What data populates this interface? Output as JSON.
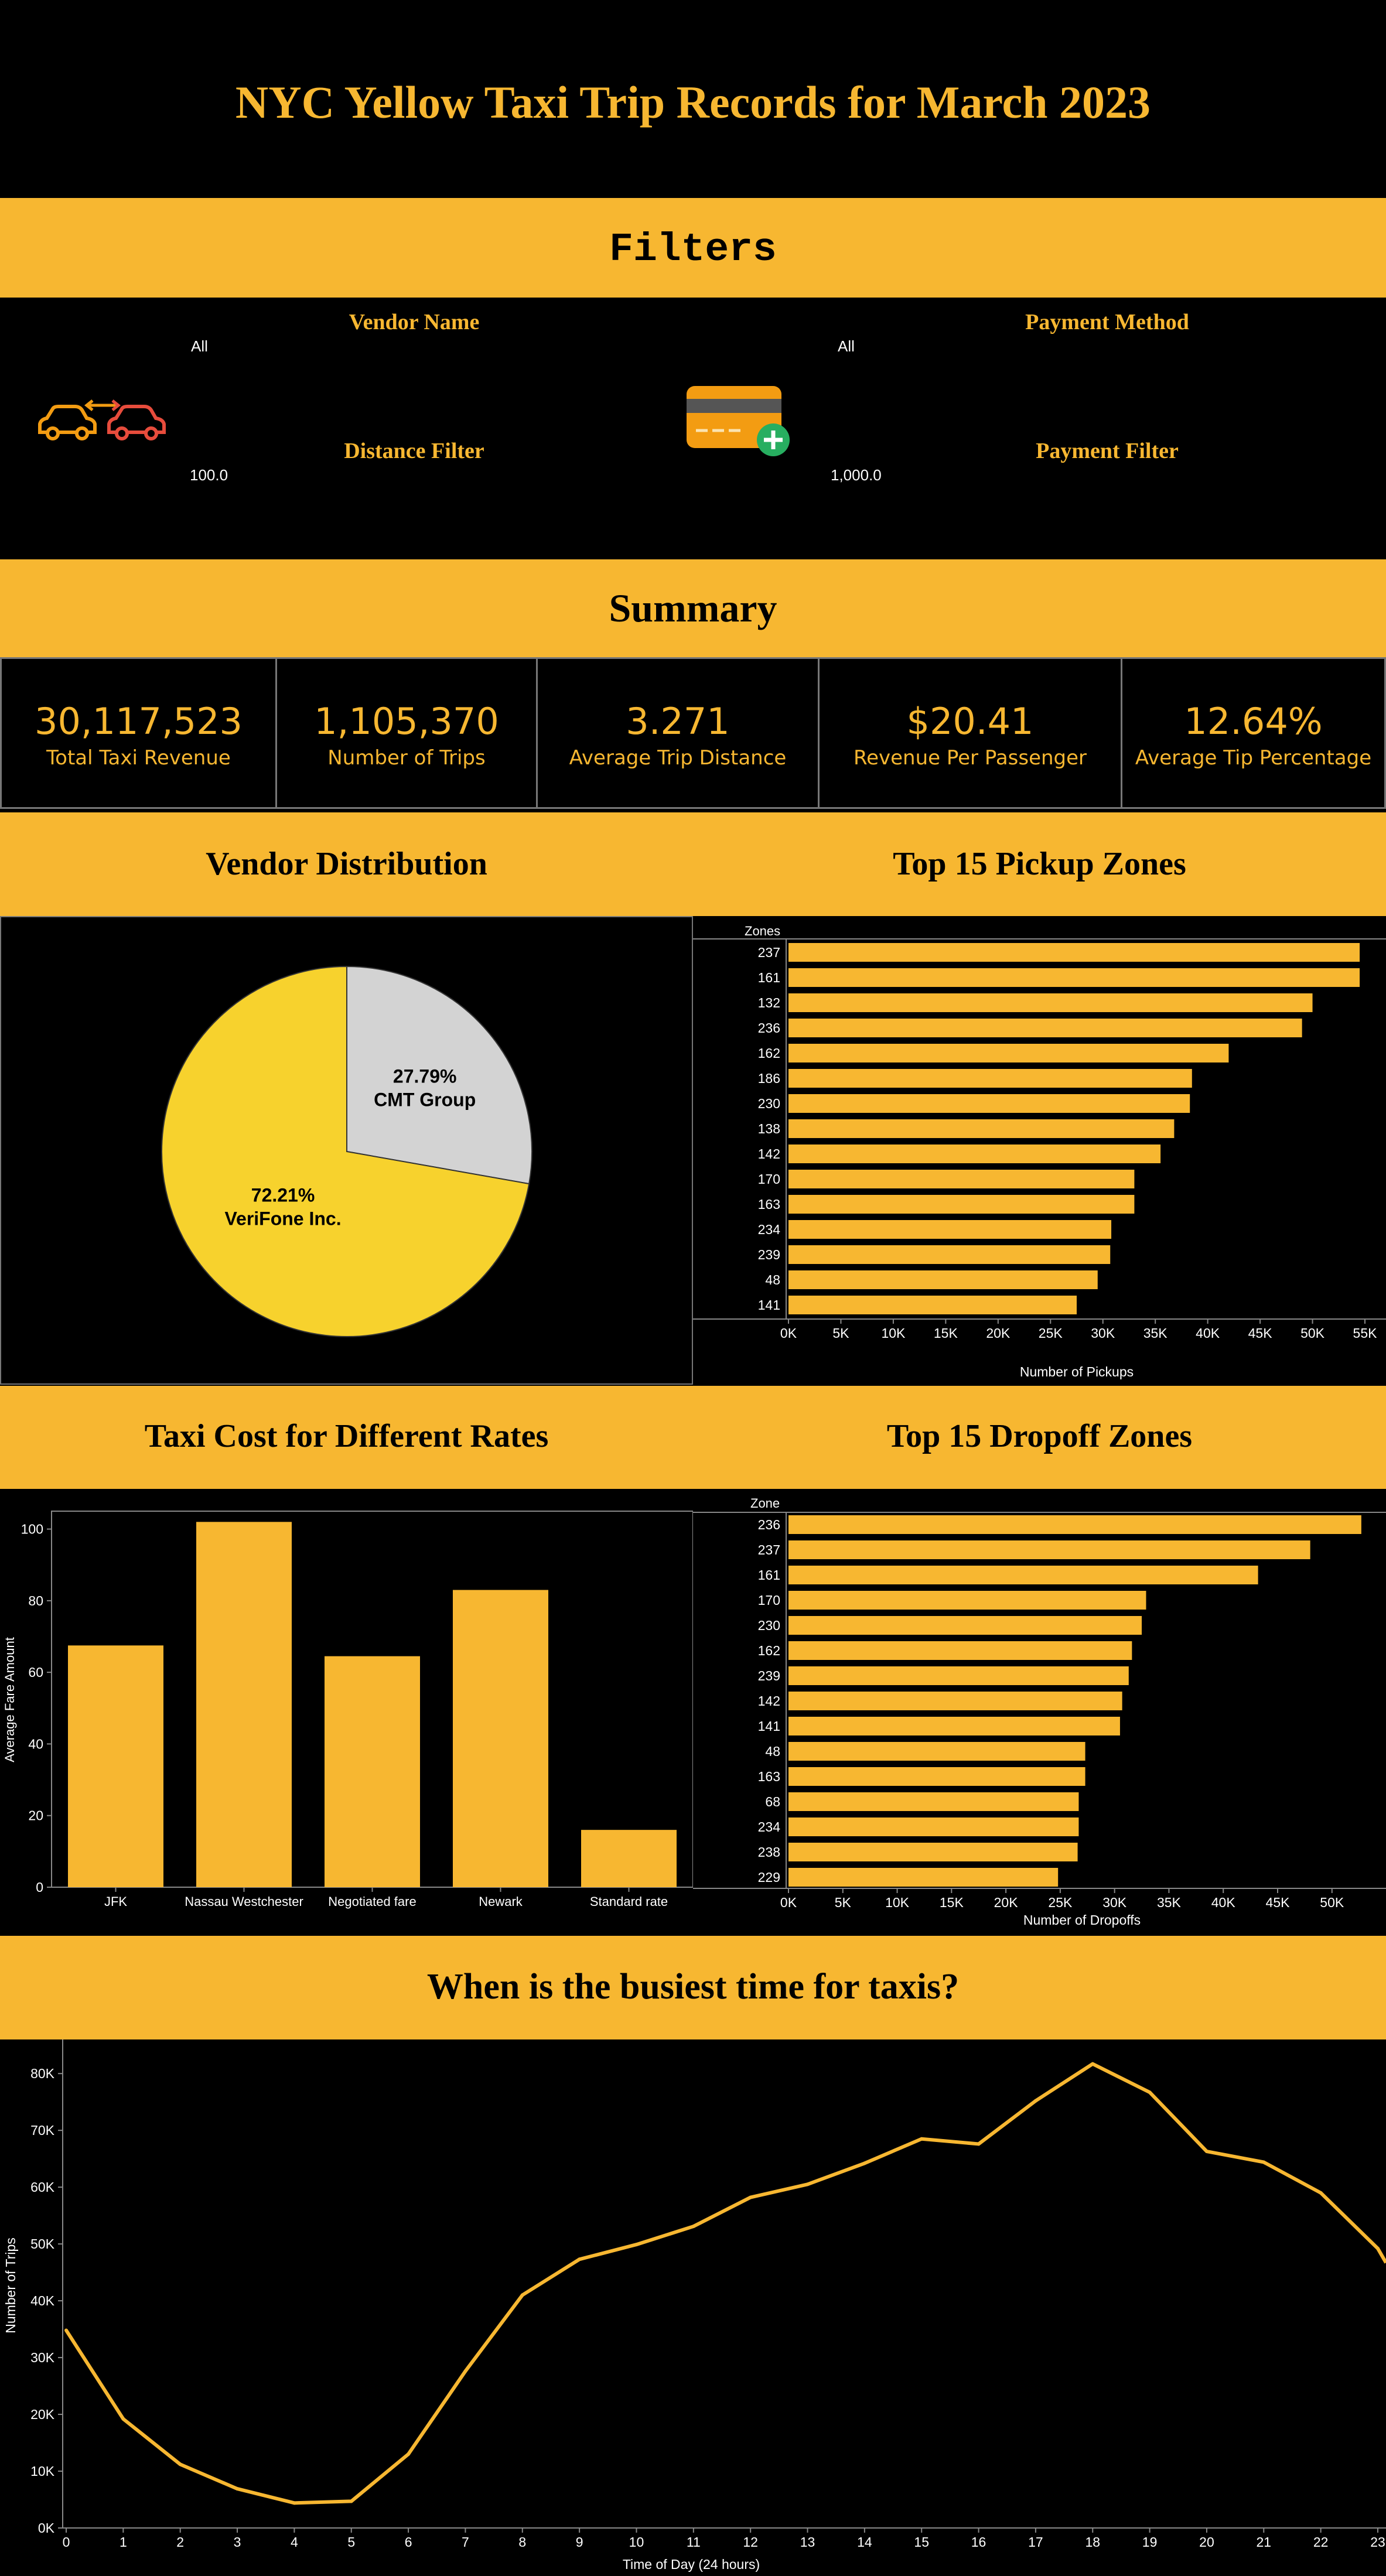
{
  "header": {
    "title": "NYC Yellow Taxi Trip Records for March 2023"
  },
  "filters": {
    "title": "Filters",
    "vendor_name_label": "Vendor Name",
    "vendor_name_value": "All",
    "payment_method_label": "Payment Method",
    "payment_method_value": "All",
    "distance_filter_label": "Distance Filter",
    "distance_filter_value": "100.0",
    "payment_filter_label": "Payment Filter",
    "payment_filter_value": "1,000.0",
    "icons": [
      "cars-icon",
      "credit-card-add-icon"
    ]
  },
  "summary": {
    "title": "Summary",
    "kpis": [
      {
        "value": "30,117,523",
        "label": "Total Taxi Revenue"
      },
      {
        "value": "1,105,370",
        "label": "Number of Trips"
      },
      {
        "value": "3.271",
        "label": "Average Trip Distance"
      },
      {
        "value": "$20.41",
        "label": "Revenue Per Passenger"
      },
      {
        "value": "12.64%",
        "label": "Average Tip Percentage"
      }
    ]
  },
  "sections": {
    "vendor_distribution": "Vendor Distribution",
    "top_pickup": "Top 15 Pickup Zones",
    "taxi_cost": "Taxi Cost for Different Rates",
    "top_dropoff": "Top 15 Dropoff Zones",
    "busiest": "When is the busiest time for taxis?"
  },
  "colors": {
    "accent": "#f7b731",
    "pie_verifone": "#f7d22d",
    "pie_cmt": "#d3d3d3"
  },
  "chart_data": [
    {
      "type": "pie",
      "slices": [
        {
          "label": "CMT Group",
          "percent_label": "27.79%",
          "value": 27.79
        },
        {
          "label": "VeriFone Inc.",
          "percent_label": "72.21%",
          "value": 72.21
        }
      ]
    },
    {
      "type": "bar",
      "orientation": "horizontal",
      "ylabel": "Zones",
      "xlabel": "Number of Pickups",
      "categories": [
        "237",
        "161",
        "132",
        "236",
        "162",
        "186",
        "230",
        "138",
        "142",
        "170",
        "163",
        "234",
        "239",
        "48",
        "141"
      ],
      "values": [
        54500,
        54500,
        50000,
        49000,
        42000,
        38500,
        38300,
        36800,
        35500,
        33000,
        33000,
        30800,
        30700,
        29500,
        27500
      ],
      "xticks": [
        "0K",
        "5K",
        "10K",
        "15K",
        "20K",
        "25K",
        "30K",
        "35K",
        "40K",
        "45K",
        "50K",
        "55K"
      ],
      "xlim": [
        0,
        55000
      ]
    },
    {
      "type": "bar",
      "ylabel": "Average Fare Amount",
      "categories": [
        "JFK",
        "Nassau Westchester",
        "Negotiated fare",
        "Newark",
        "Standard rate"
      ],
      "values": [
        67.5,
        102,
        64.5,
        83,
        16
      ],
      "yticks": [
        "0",
        "20",
        "40",
        "60",
        "80",
        "100"
      ],
      "ylim": [
        0,
        105
      ]
    },
    {
      "type": "bar",
      "orientation": "horizontal",
      "ylabel": "Zone",
      "xlabel": "Number of Dropoffs",
      "categories": [
        "236",
        "237",
        "161",
        "170",
        "230",
        "162",
        "239",
        "142",
        "141",
        "48",
        "163",
        "68",
        "234",
        "238",
        "229"
      ],
      "values": [
        52700,
        48000,
        43200,
        32900,
        32500,
        31600,
        31300,
        30700,
        30500,
        27300,
        27300,
        26700,
        26700,
        26600,
        24800
      ],
      "xticks": [
        "0K",
        "5K",
        "10K",
        "15K",
        "20K",
        "25K",
        "30K",
        "35K",
        "40K",
        "45K",
        "50K"
      ],
      "xlim": [
        0,
        54000
      ]
    },
    {
      "type": "line",
      "xlabel": "Time of Day (24 hours)",
      "ylabel": "Number of Trips",
      "x": [
        0,
        1,
        2,
        3,
        4,
        5,
        6,
        7,
        8,
        9,
        10,
        11,
        12,
        13,
        14,
        15,
        16,
        17,
        18,
        19,
        20,
        21,
        22,
        23
      ],
      "values": [
        34800,
        19200,
        11200,
        6900,
        4400,
        4700,
        13000,
        27600,
        41000,
        47300,
        49900,
        53100,
        58200,
        60500,
        64200,
        68500,
        67600,
        75200,
        81700,
        76700,
        66300,
        64400,
        59000,
        49200
      ],
      "yticks": [
        "0K",
        "10K",
        "20K",
        "30K",
        "40K",
        "50K",
        "60K",
        "70K",
        "80K"
      ],
      "ylim": [
        0,
        86000
      ]
    }
  ]
}
